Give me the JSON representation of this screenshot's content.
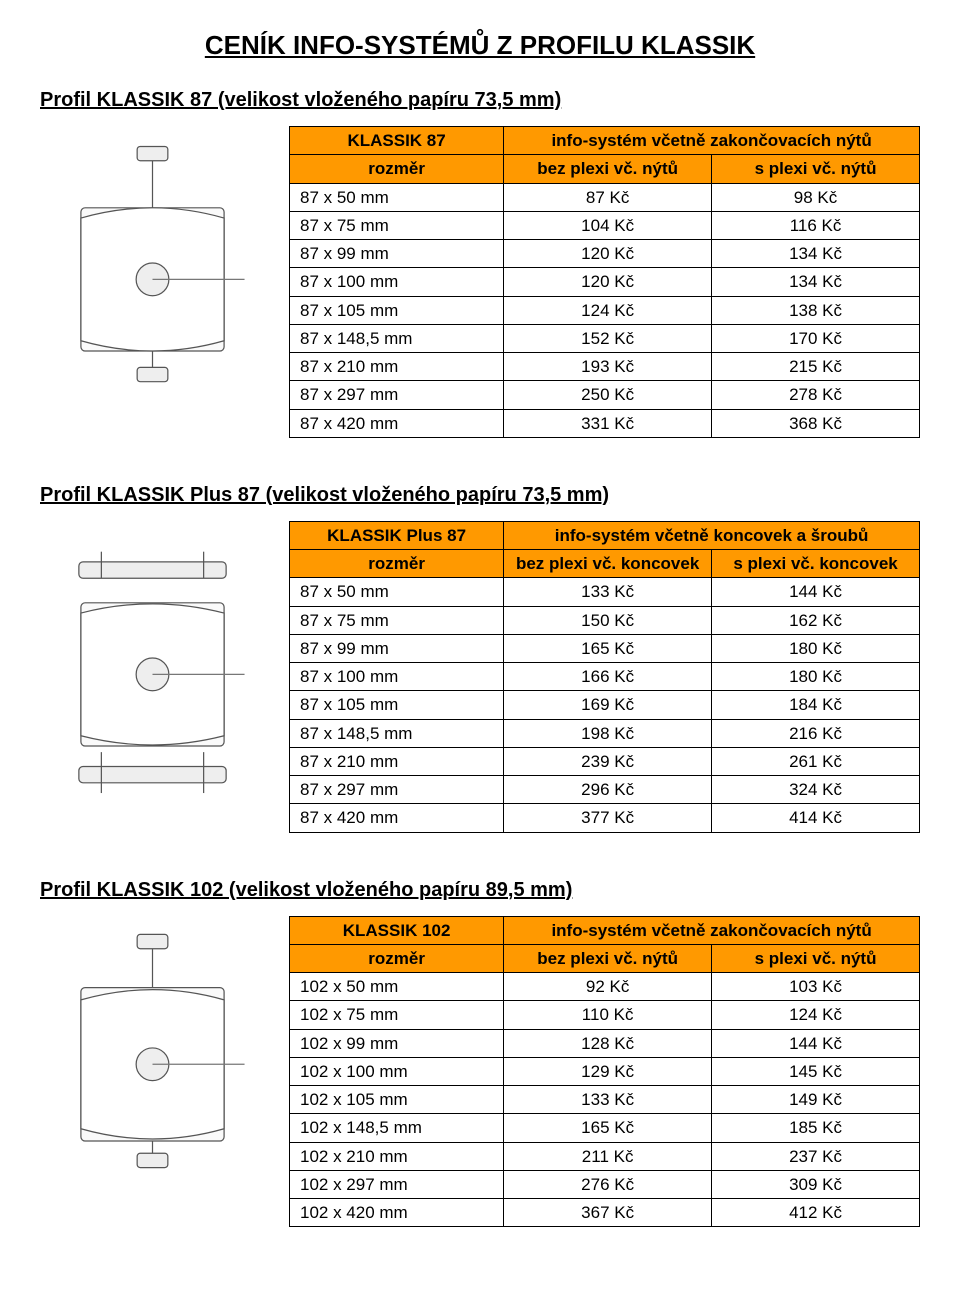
{
  "main_title": "CENÍK INFO-SYSTÉMŮ Z PROFILU KLASSIK",
  "colors": {
    "header_bg": "#ff9900",
    "border": "#000000",
    "page_bg": "#ffffff"
  },
  "sections": [
    {
      "title": "Profil KLASSIK 87 (velikost vloženého papíru 73,5 mm)",
      "header_name": "KLASSIK 87",
      "header_span": "info-systém včetně zakončovacích nýtů",
      "sub_left": "rozměr",
      "sub_mid": "bez plexi vč. nýtů",
      "sub_right": "s plexi vč. nýtů",
      "rows": [
        {
          "dim": "87 x 50 mm",
          "c1": "87 Kč",
          "c2": "98 Kč"
        },
        {
          "dim": "87 x 75 mm",
          "c1": "104 Kč",
          "c2": "116 Kč"
        },
        {
          "dim": "87 x 99 mm",
          "c1": "120 Kč",
          "c2": "134 Kč"
        },
        {
          "dim": "87 x 100 mm",
          "c1": "120 Kč",
          "c2": "134 Kč"
        },
        {
          "dim": "87 x 105 mm",
          "c1": "124 Kč",
          "c2": "138 Kč"
        },
        {
          "dim": "87 x 148,5 mm",
          "c1": "152 Kč",
          "c2": "170 Kč"
        },
        {
          "dim": "87 x 210 mm",
          "c1": "193 Kč",
          "c2": "215 Kč"
        },
        {
          "dim": "87 x 297 mm",
          "c1": "250 Kč",
          "c2": "278 Kč"
        },
        {
          "dim": "87 x 420 mm",
          "c1": "331 Kč",
          "c2": "368 Kč"
        }
      ]
    },
    {
      "title": "Profil KLASSIK Plus 87 (velikost vloženého papíru 73,5 mm)",
      "header_name": "KLASSIK Plus 87",
      "header_span": "info-systém včetně koncovek a šroubů",
      "sub_left": "rozměr",
      "sub_mid": "bez plexi vč. koncovek",
      "sub_right": "s plexi vč. koncovek",
      "rows": [
        {
          "dim": "87 x 50 mm",
          "c1": "133 Kč",
          "c2": "144 Kč"
        },
        {
          "dim": "87 x 75 mm",
          "c1": "150 Kč",
          "c2": "162 Kč"
        },
        {
          "dim": "87 x 99 mm",
          "c1": "165 Kč",
          "c2": "180 Kč"
        },
        {
          "dim": "87 x 100 mm",
          "c1": "166 Kč",
          "c2": "180 Kč"
        },
        {
          "dim": "87 x 105 mm",
          "c1": "169 Kč",
          "c2": "184 Kč"
        },
        {
          "dim": "87 x 148,5 mm",
          "c1": "198 Kč",
          "c2": "216 Kč"
        },
        {
          "dim": "87 x 210 mm",
          "c1": "239 Kč",
          "c2": "261 Kč"
        },
        {
          "dim": "87 x 297 mm",
          "c1": "296 Kč",
          "c2": "324 Kč"
        },
        {
          "dim": "87 x 420 mm",
          "c1": "377 Kč",
          "c2": "414 Kč"
        }
      ]
    },
    {
      "title": "Profil KLASSIK 102 (velikost vloženého papíru 89,5 mm)",
      "header_name": "KLASSIK 102",
      "header_span": "info-systém včetně zakončovacích nýtů",
      "sub_left": "rozměr",
      "sub_mid": "bez plexi vč. nýtů",
      "sub_right": "s plexi vč. nýtů",
      "rows": [
        {
          "dim": "102 x 50 mm",
          "c1": "92 Kč",
          "c2": "103 Kč"
        },
        {
          "dim": "102 x 75 mm",
          "c1": "110 Kč",
          "c2": "124 Kč"
        },
        {
          "dim": "102 x 99 mm",
          "c1": "128 Kč",
          "c2": "144 Kč"
        },
        {
          "dim": "102 x 100 mm",
          "c1": "129 Kč",
          "c2": "145 Kč"
        },
        {
          "dim": "102 x 105 mm",
          "c1": "133 Kč",
          "c2": "149 Kč"
        },
        {
          "dim": "102 x 148,5 mm",
          "c1": "165 Kč",
          "c2": "185 Kč"
        },
        {
          "dim": "102 x 210 mm",
          "c1": "211 Kč",
          "c2": "237 Kč"
        },
        {
          "dim": "102 x 297 mm",
          "c1": "276 Kč",
          "c2": "309 Kč"
        },
        {
          "dim": "102 x 420 mm",
          "c1": "367 Kč",
          "c2": "412 Kč"
        }
      ]
    }
  ]
}
